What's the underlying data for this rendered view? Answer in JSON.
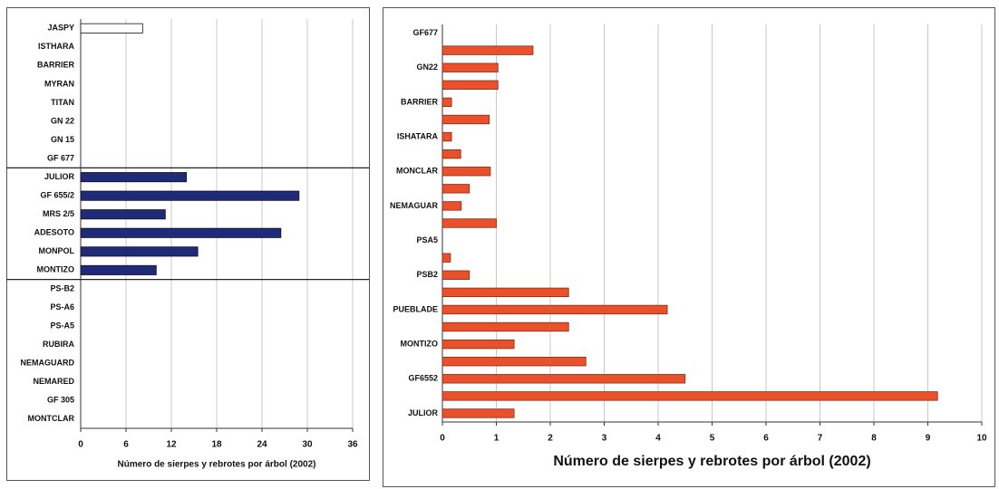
{
  "chart_data": [
    {
      "type": "bar",
      "orientation": "horizontal",
      "categories": [
        "JASPY",
        "ISTHARA",
        "BARRIER",
        "MYRAN",
        "TITAN",
        "GN 22",
        "GN 15",
        "GF 677",
        "JULIOR",
        "GF 655/2",
        "MRS 2/5",
        "ADESOTO",
        "MONPOL",
        "MONTIZO",
        "PS-B2",
        "PS-A6",
        "PS-A5",
        "RUBIRA",
        "NEMAGUARD",
        "NEMARED",
        "GF 305",
        "MONTCLAR"
      ],
      "values": [
        8.2,
        0,
        0,
        0,
        0,
        0,
        0,
        0,
        14,
        28.9,
        11.2,
        26.5,
        15.5,
        10,
        0,
        0,
        0,
        0,
        0,
        0,
        0,
        0
      ],
      "colors": [
        "#ffffff",
        "#1f2a78",
        "#1f2a78",
        "#1f2a78",
        "#1f2a78",
        "#1f2a78",
        "#1f2a78",
        "#1f2a78",
        "#1f2a78",
        "#1f2a78",
        "#1f2a78",
        "#1f2a78",
        "#1f2a78",
        "#1f2a78",
        "#1f2a78",
        "#1f2a78",
        "#1f2a78",
        "#1f2a78",
        "#1f2a78",
        "#1f2a78",
        "#1f2a78",
        "#1f2a78"
      ],
      "xlabel": "Número de sierpes y rebrotes por árbol (2002)",
      "xlim": [
        0,
        36
      ],
      "xticks": [
        0,
        6,
        12,
        18,
        24,
        30,
        36
      ],
      "grid": true
    },
    {
      "type": "bar",
      "orientation": "horizontal",
      "categories": [
        "GF677",
        null,
        "GN22",
        null,
        "BARRIER",
        null,
        "ISHATARA",
        null,
        "MONCLAR",
        null,
        "NEMAGUAR",
        null,
        "PSA5",
        null,
        "PSB2",
        null,
        "PUEBLADE",
        null,
        "MONTIZO",
        null,
        "GF6552",
        null,
        "JULIOR"
      ],
      "values": [
        0,
        1.68,
        1.03,
        1.03,
        0.17,
        0.87,
        0.17,
        0.34,
        0.89,
        0.5,
        0.35,
        1.0,
        0,
        0.15,
        0.5,
        2.34,
        4.17,
        2.34,
        1.33,
        2.66,
        4.5,
        9.18,
        1.33
      ],
      "color": "#e8512b",
      "xlabel": "Número de sierpes y rebrotes por árbol (2002)",
      "xlim": [
        0,
        10
      ],
      "xticks": [
        0,
        1,
        2,
        3,
        4,
        5,
        6,
        7,
        8,
        9,
        10
      ],
      "grid": true
    }
  ]
}
